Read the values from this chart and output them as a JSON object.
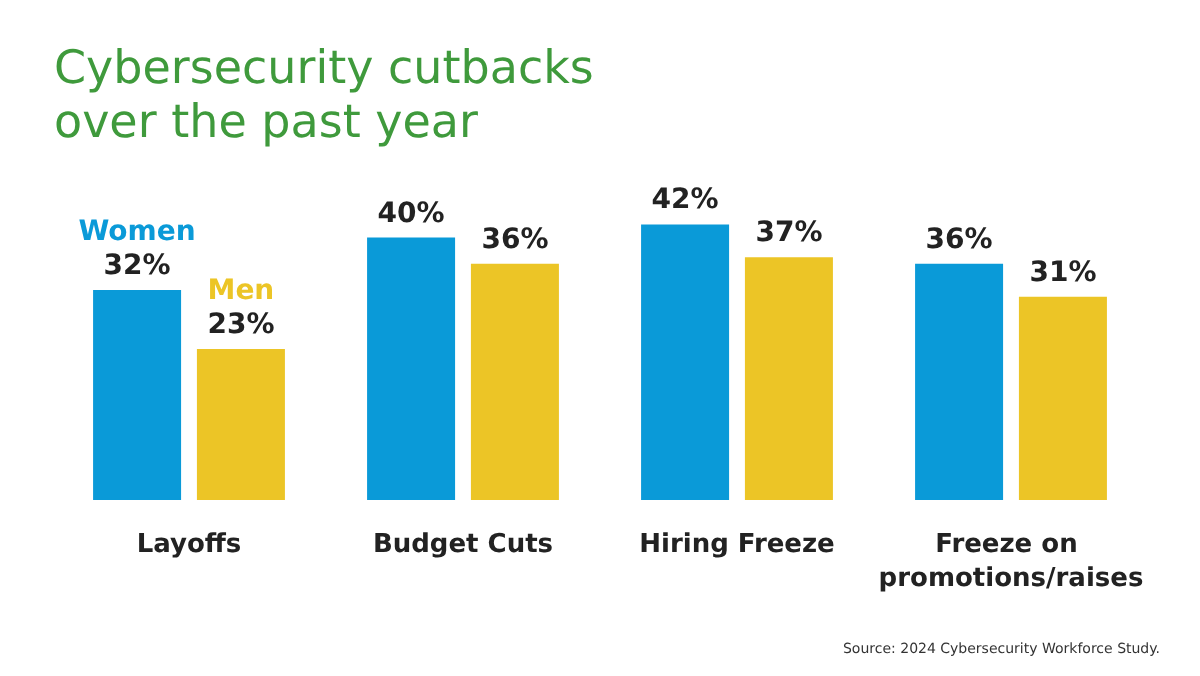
{
  "chart_data": {
    "type": "bar",
    "title": "Cybersecurity cutbacks\nover the past year",
    "categories": [
      "Layoffs",
      "Budget Cuts",
      "Hiring Freeze",
      "Freeze on promotions/raises"
    ],
    "series": [
      {
        "name": "Women",
        "color": "#0a9ad8",
        "values": [
          32,
          40,
          42,
          36
        ],
        "value_labels": [
          "32%",
          "40%",
          "42%",
          "36%"
        ]
      },
      {
        "name": "Men",
        "color": "#ecc526",
        "values": [
          23,
          36,
          37,
          31
        ],
        "value_labels": [
          "23%",
          "36%",
          "37%",
          "31%"
        ]
      }
    ],
    "annotations": [
      "Source: 2024 Cybersecurity Workforce Study."
    ],
    "grid": false,
    "legend": false
  }
}
